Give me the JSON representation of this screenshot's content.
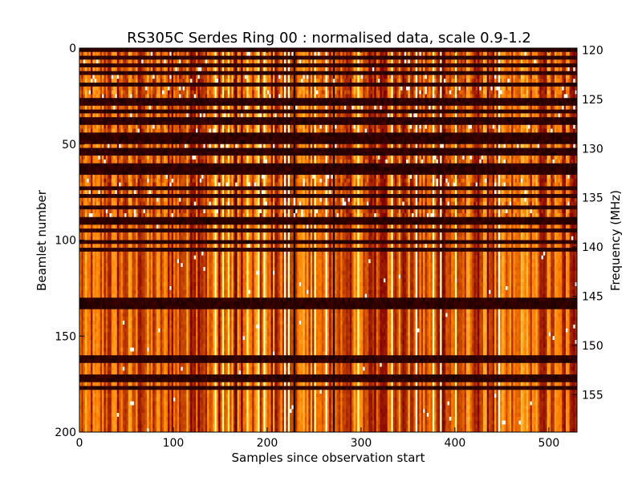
{
  "chart_data": {
    "type": "heatmap",
    "title": "RS305C Serdes Ring 00 : normalised data, scale 0.9-1.2",
    "xlabel": "Samples since observation start",
    "ylabel": "Beamlet number",
    "y2label": "Frequency (MHz)",
    "xlim": [
      0,
      530
    ],
    "ylim": [
      200,
      0
    ],
    "y2lim": [
      119.8,
      158.8
    ],
    "xticks": [
      0,
      100,
      200,
      300,
      400,
      500
    ],
    "yticks": [
      0,
      50,
      100,
      150,
      200
    ],
    "y2ticks": [
      120,
      125,
      130,
      135,
      140,
      145,
      150,
      155
    ],
    "color_scale": [
      0.9,
      1.2
    ],
    "colormap": "afmhot",
    "grid": false,
    "dark_rows": [
      1,
      4,
      8,
      12,
      19,
      26,
      28,
      33,
      36,
      38,
      44,
      47,
      49,
      53,
      55,
      61,
      63,
      65,
      73,
      77,
      82,
      89,
      90,
      94,
      95,
      101,
      104,
      130,
      132,
      134,
      160,
      162,
      170,
      172,
      177
    ],
    "bright_columns": [
      143,
      152,
      158,
      178,
      190,
      196,
      218,
      221,
      245,
      250,
      262,
      296,
      332,
      358,
      375,
      383,
      400,
      445,
      470,
      476
    ],
    "dark_columns": [
      165,
      228,
      270,
      310,
      345,
      420,
      490,
      515
    ]
  }
}
